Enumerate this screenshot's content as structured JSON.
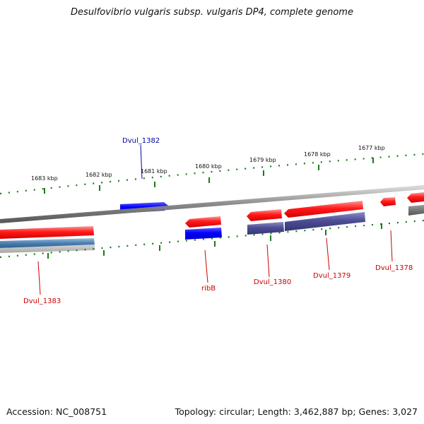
{
  "title": "Desulfovibrio vulgaris subsp. vulgaris DP4, complete genome",
  "footer": {
    "accession": "Accession: NC_008751",
    "summary": "Topology: circular; Length: 3,462,887 bp; Genes: 3,027"
  },
  "scale_labels": [
    "1683 kbp",
    "1682 kbp",
    "1681 kbp",
    "1680 kbp",
    "1679 kbp",
    "1678 kbp",
    "1677 kbp"
  ],
  "gene_labels": {
    "dvul_1382": "Dvul_1382",
    "dvul_1383": "Dvul_1383",
    "ribB": "ribB",
    "dvul_1380": "Dvul_1380",
    "dvul_1379": "Dvul_1379",
    "dvul_1378": "Dvul_1378"
  },
  "colors": {
    "forward_gene": "#0000ff",
    "reverse_gene": "#ff0000",
    "cds_track": "#4a4a8c",
    "backbone": "#7f7f7f",
    "tick": "#1a7a1a",
    "label_forward": "#0000aa",
    "label_reverse": "#cc0000"
  }
}
